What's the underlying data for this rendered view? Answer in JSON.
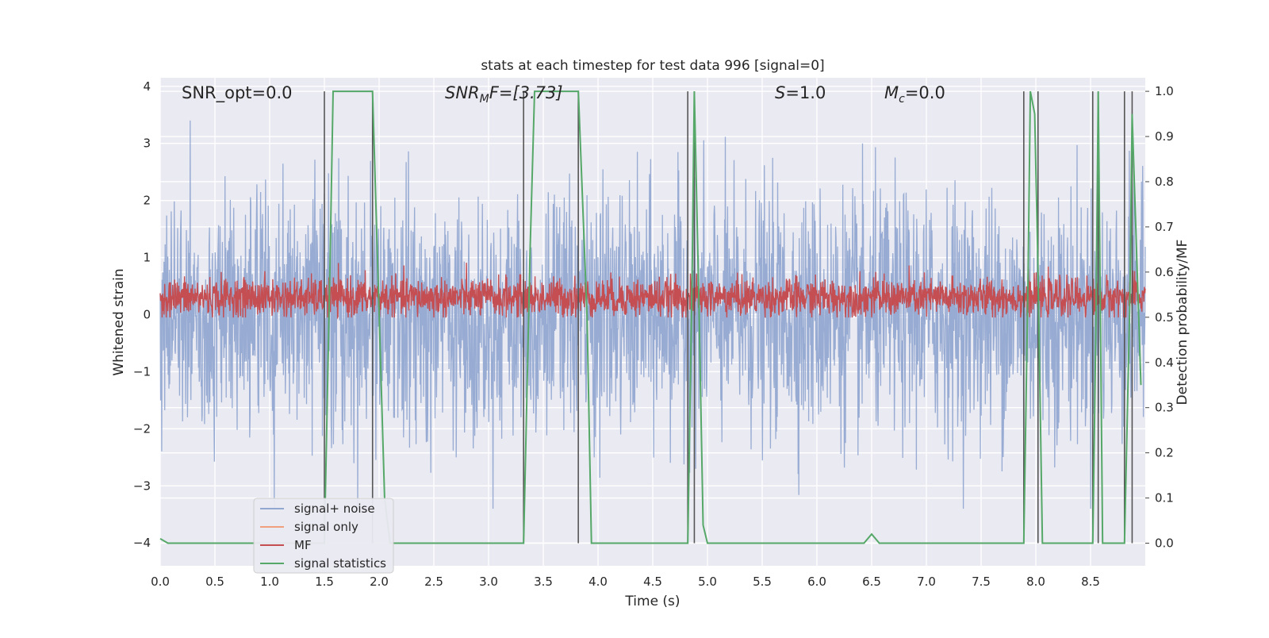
{
  "chart_data": {
    "type": "line",
    "title": "stats at each timestep for test data 996 [signal=0]",
    "xlabel": "Time (s)",
    "ylabel_left": "Whitened strain",
    "ylabel_right": "Detection probability/MF",
    "xlim": [
      0.0,
      9.0
    ],
    "ylim_left": [
      -4.4,
      4.15
    ],
    "ylim_right": [
      -0.05,
      1.03
    ],
    "x_ticks": [
      "0.0",
      "0.5",
      "1.0",
      "1.5",
      "2.0",
      "2.5",
      "3.0",
      "3.5",
      "4.0",
      "4.5",
      "5.0",
      "5.5",
      "6.0",
      "6.5",
      "7.0",
      "7.5",
      "8.0",
      "8.5"
    ],
    "y_ticks_left": [
      "−4",
      "−3",
      "−2",
      "−1",
      "0",
      "1",
      "2",
      "3",
      "4"
    ],
    "y_ticks_right": [
      "0.0",
      "0.1",
      "0.2",
      "0.3",
      "0.4",
      "0.5",
      "0.6",
      "0.7",
      "0.8",
      "0.9",
      "1.0"
    ],
    "grid": true,
    "legend_position": "lower-left",
    "annotations": {
      "snr_opt": "SNR_opt=0.0",
      "snr_mf_base": "SNR",
      "snr_mf_sub": "M",
      "snr_mf_rest": "F=[3.73]",
      "s_italic": "S",
      "s_rest": "=1.0",
      "mc_base": "M",
      "mc_sub": "c",
      "mc_rest": "=0.0"
    },
    "series": [
      {
        "name": "signal+ noise",
        "color": "#92a8d1",
        "style": "noise band, approx. ±2 std with spikes up to ±3.4"
      },
      {
        "name": "signal only",
        "color": "#f0a07e",
        "values": []
      },
      {
        "name": "MF",
        "color": "#c44e52",
        "style": "band around 0.3, range about -0.05 to 1.0"
      },
      {
        "name": "signal statistics",
        "color": "#55a868",
        "axis": "right",
        "x": [
          0.0,
          0.07,
          0.15,
          1.5,
          1.55,
          1.58,
          1.62,
          1.94,
          2.05,
          2.1,
          3.32,
          3.38,
          3.42,
          3.82,
          3.9,
          3.94,
          4.82,
          4.86,
          4.88,
          4.92,
          4.96,
          5.0,
          6.43,
          6.5,
          6.57,
          7.89,
          7.93,
          7.95,
          7.99,
          8.02,
          8.06,
          8.52,
          8.55,
          8.57,
          8.61,
          8.81,
          8.86,
          8.88,
          8.96
        ],
        "values": [
          0.01,
          0.0,
          0.0,
          0.0,
          0.6,
          1.0,
          1.0,
          1.0,
          0.1,
          0.0,
          0.0,
          0.65,
          1.0,
          1.0,
          0.5,
          0.0,
          0.0,
          0.6,
          1.0,
          0.55,
          0.04,
          0.0,
          0.0,
          0.02,
          0.0,
          0.0,
          0.6,
          1.0,
          0.95,
          0.6,
          0.0,
          0.0,
          0.5,
          1.0,
          0.0,
          0.0,
          0.55,
          0.95,
          0.35
        ]
      }
    ],
    "trigger_lines_x": [
      1.5,
      1.94,
      3.32,
      3.82,
      4.82,
      4.88,
      7.89,
      8.02,
      8.52,
      8.57,
      8.81,
      8.88
    ]
  }
}
